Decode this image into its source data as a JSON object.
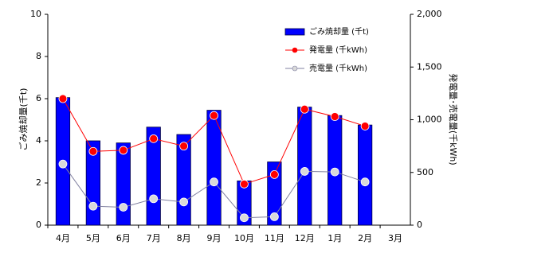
{
  "chart_data": {
    "type": "combo",
    "categories": [
      "4月",
      "5月",
      "6月",
      "7月",
      "8月",
      "9月",
      "10月",
      "11月",
      "12月",
      "1月",
      "2月",
      "3月"
    ],
    "ylabel": "ごみ焼却量(千t)",
    "y2label": "発電量･売電量(千kWh)",
    "ylim": [
      0,
      10
    ],
    "yticks": [
      0,
      2,
      4,
      6,
      8,
      10
    ],
    "y2lim": [
      0,
      2000
    ],
    "y2ticks": [
      0,
      500,
      {
        "value": 1000,
        "label": "1,000"
      },
      {
        "value": 1500,
        "label": "1,500"
      },
      {
        "value": 2000,
        "label": "2,000"
      }
    ],
    "legend": "upper-right",
    "series": [
      {
        "name": "ごみ焼却量 (千t)",
        "type": "bar",
        "color": "#0000ff",
        "values": [
          6.05,
          4.0,
          3.9,
          4.65,
          4.3,
          5.45,
          2.1,
          3.0,
          5.6,
          5.2,
          4.75,
          null
        ]
      },
      {
        "name": "発電量 (千kWh)",
        "type": "line",
        "axis": "y2",
        "color": "#ff0000",
        "marker_color": "#ff0000",
        "values": [
          1200,
          700,
          710,
          820,
          750,
          1040,
          390,
          480,
          1100,
          1030,
          940,
          null
        ]
      },
      {
        "name": "売電量 (千kWh)",
        "type": "line",
        "axis": "y2",
        "color": "#8080a0",
        "marker_color": "#d9d9d9",
        "values": [
          580,
          180,
          170,
          250,
          220,
          410,
          70,
          80,
          510,
          505,
          410,
          null
        ]
      }
    ]
  }
}
